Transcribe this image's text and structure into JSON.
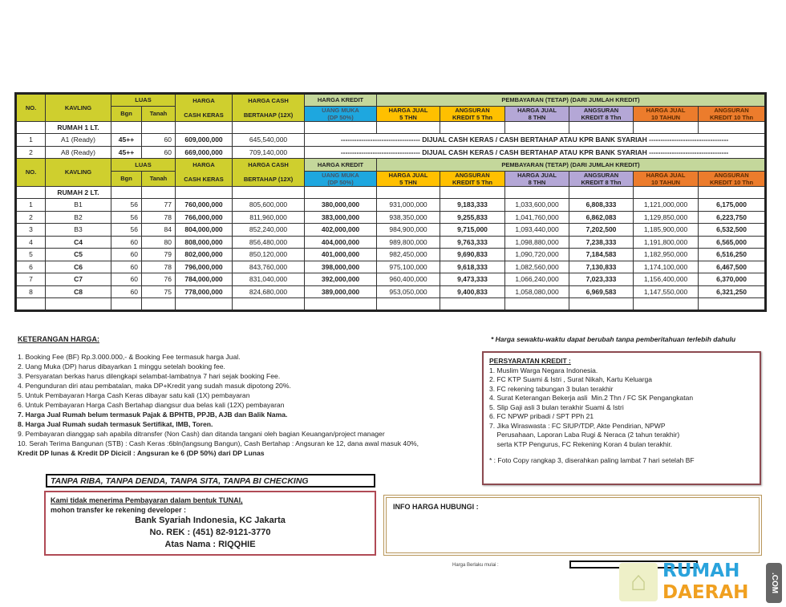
{
  "headers": {
    "no": "NO.",
    "kavling": "KAVLING",
    "luas": "LUAS",
    "bgn": "Bgn",
    "tanah": "Tanah",
    "harga_top": "HARGA",
    "cash_keras": "CASH KERAS",
    "harga_cash": "HARGA CASH",
    "bertahap": "BERTAHAP (12X)",
    "harga_kredit": "HARGA  KREDIT",
    "uang_muka": "UANG MUKA",
    "dp": "(DP 50%)",
    "pembayaran": "PEMBAYARAN  (TETAP) (DARI JUMLAH KREDIT)",
    "hj5a": "HARGA JUAL",
    "hj5b": "5 THN",
    "an5a": "ANGSURAN",
    "an5b": "KREDIT 5 Thn",
    "hj8a": "HARGA JUAL",
    "hj8b": "8 THN",
    "an8a": "ANGSURAN",
    "an8b": "KREDIT 8 Thn",
    "hj10a": "HARGA JUAL",
    "hj10b": "10 TAHUN",
    "an10a": "ANGSURAN",
    "an10b": "KREDIT 10 Thn"
  },
  "rumah1": {
    "label": "RUMAH 1 LT.",
    "dashes_left": "-----------------------------------",
    "note": "DIJUAL    CASH    KERAS / CASH    BERTAHAP  ATAU   KPR BANK SYARIAH",
    "dashes_right": "-----------------------------------",
    "rows": [
      {
        "no": "1",
        "kavling": "A1 (Ready)",
        "bgn": "45++",
        "tanah": "60",
        "cash_keras": "609,000,000",
        "cash_bertahap": "645,540,000"
      },
      {
        "no": "2",
        "kavling": "A8 (Ready)",
        "bgn": "45++",
        "tanah": "60",
        "cash_keras": "669,000,000",
        "cash_bertahap": "709,140,000"
      }
    ]
  },
  "rumah2": {
    "label": "RUMAH 2 LT.",
    "rows": [
      [
        "1",
        "B1",
        "56",
        "77",
        "760,000,000",
        "805,600,000",
        "380,000,000",
        "931,000,000",
        "9,183,333",
        "1,033,600,000",
        "6,808,333",
        "1,121,000,000",
        "6,175,000"
      ],
      [
        "2",
        "B2",
        "56",
        "78",
        "766,000,000",
        "811,960,000",
        "383,000,000",
        "938,350,000",
        "9,255,833",
        "1,041,760,000",
        "6,862,083",
        "1,129,850,000",
        "6,223,750"
      ],
      [
        "3",
        "B3",
        "56",
        "84",
        "804,000,000",
        "852,240,000",
        "402,000,000",
        "984,900,000",
        "9,715,000",
        "1,093,440,000",
        "7,202,500",
        "1,185,900,000",
        "6,532,500"
      ],
      [
        "4",
        "C4",
        "60",
        "80",
        "808,000,000",
        "856,480,000",
        "404,000,000",
        "989,800,000",
        "9,763,333",
        "1,098,880,000",
        "7,238,333",
        "1,191,800,000",
        "6,565,000"
      ],
      [
        "5",
        "C5",
        "60",
        "79",
        "802,000,000",
        "850,120,000",
        "401,000,000",
        "982,450,000",
        "9,690,833",
        "1,090,720,000",
        "7,184,583",
        "1,182,950,000",
        "6,516,250"
      ],
      [
        "6",
        "C6",
        "60",
        "78",
        "796,000,000",
        "843,760,000",
        "398,000,000",
        "975,100,000",
        "9,618,333",
        "1,082,560,000",
        "7,130,833",
        "1,174,100,000",
        "6,467,500"
      ],
      [
        "7",
        "C7",
        "60",
        "76",
        "784,000,000",
        "831,040,000",
        "392,000,000",
        "960,400,000",
        "9,473,333",
        "1,066,240,000",
        "7,023,333",
        "1,156,400,000",
        "6,370,000"
      ],
      [
        "8",
        "C8",
        "60",
        "75",
        "778,000,000",
        "824,680,000",
        "389,000,000",
        "953,050,000",
        "9,400,833",
        "1,058,080,000",
        "6,969,583",
        "1,147,550,000",
        "6,321,250"
      ]
    ]
  },
  "keterangan": {
    "title": "KETERANGAN HARGA:",
    "items": [
      "1.  Booking Fee (BF) Rp.3.000.000,- & Booking Fee termasuk harga Jual.",
      "2.  Uang Muka (DP)  harus dibayarkan 1 minggu setelah booking fee.",
      "3.  Persyaratan berkas harus dilengkapi selambat-lambatnya 7 hari sejak booking Fee.",
      "4.  Pengunduran diri atau pembatalan, maka DP+Kredit yang sudah masuk dipotong 20%.",
      "5.  Untuk Pembayaran Harga Cash Keras dibayar satu kali (1X) pembayaran",
      "6.  Untuk Pembayaran Harga Cash Bertahap diangsur dua belas kali (12X) pembayaran",
      "7.  Harga Jual Rumah belum termasuk Pajak & BPHTB, PPJB, AJB dan Balik Nama.",
      "8.  Harga Jual Rumah sudah termasuk Sertifikat, IMB, Toren.",
      "9. Pembayaran dianggap sah apabila ditransfer (Non Cash) dan ditanda tangani oleh bagian Keuangan/project manager",
      "10. Serah Terima Bangunan (STB) : Cash Keras :6bln(langsung Bangun), Cash Bertahap : Angsuran ke 12, dana awal masuk 40%,",
      "      Kredit DP lunas & Kredit DP Dicicil : Angsuran ke 6 (DP 50%) dari DP Lunas"
    ]
  },
  "disclaimer": "* Harga sewaktu-waktu dapat berubah tanpa pemberitahuan terlebih dahulu",
  "tanpa": "TANPA RIBA, TANPA DENDA, TANPA SITA, TANPA BI CHECKING",
  "bank": {
    "line1": "Kami tidak menerima Pembayaran dalam bentuk TUNAI,",
    "line2": "mohon transfer ke rekening developer :",
    "bank_name": "Bank Syariah Indonesia, KC Jakarta",
    "rek": "No. REK : (451) 82-9121-3770",
    "nama": "Atas Nama : RIQQHIE"
  },
  "persyaratan": {
    "title": "PERSYARATAN KREDIT :",
    "items": [
      "1. Muslim Warga Negara Indonesia.",
      "2. FC KTP Suami & Istri , Surat Nikah, Kartu Keluarga",
      "3. FC rekening tabungan 3 bulan terakhir",
      "4. Surat Keterangan Bekerja asli  Min.2 Thn / FC SK Pengangkatan",
      "5. Slip Gaji asli 3 bulan terakhir Suami & Istri",
      "6. FC NPWP pribadi / SPT PPh 21",
      "7. Jika Wiraswasta : FC SIUP/TDP, Akte Pendirian, NPWP",
      "    Perusahaan, Laporan Laba Rugi & Neraca (2 tahun terakhir)",
      "    serta KTP Pengurus, FC Rekening Koran 4 bulan terakhir."
    ],
    "footnote": "* : Foto Copy rangkap 3, diserahkan paling lambat 7 hari setelah BF"
  },
  "info": "INFO HARGA HUBUNGI :",
  "berlaku": "Harga Berlaku mulai :",
  "logo": {
    "line1": "RUMAH",
    "line2": "DAERAH",
    "suffix": ".COM"
  },
  "colors": {
    "header_yellow": "#cfcf2e",
    "header_green": "#c4d79b",
    "blue": "#1ea7df",
    "orange": "#ffc000",
    "purple": "#b4a7d6",
    "dark_orange": "#ec7c2c"
  }
}
